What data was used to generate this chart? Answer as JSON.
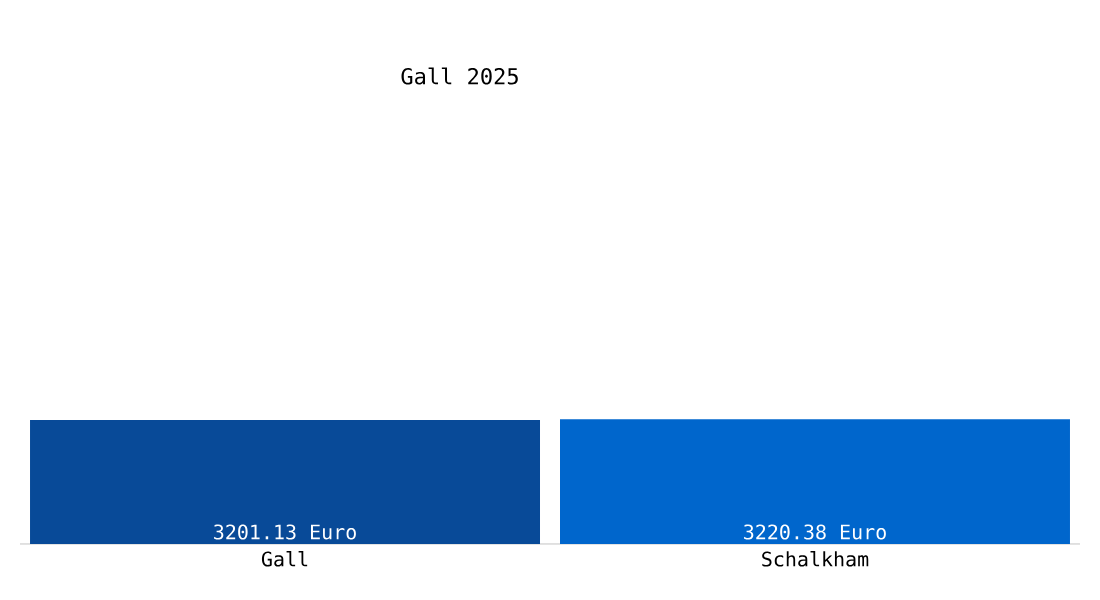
{
  "chart_data": {
    "type": "bar",
    "title": "Gall 2025",
    "categories": [
      "Gall",
      "Schalkham"
    ],
    "values": [
      3201.13,
      3220.38
    ],
    "colors": [
      "#084a98",
      "#0066cc"
    ],
    "value_labels": [
      "3201.13 Euro",
      "3220.38 Euro"
    ],
    "tick_labels": "x",
    "grid": false
  }
}
